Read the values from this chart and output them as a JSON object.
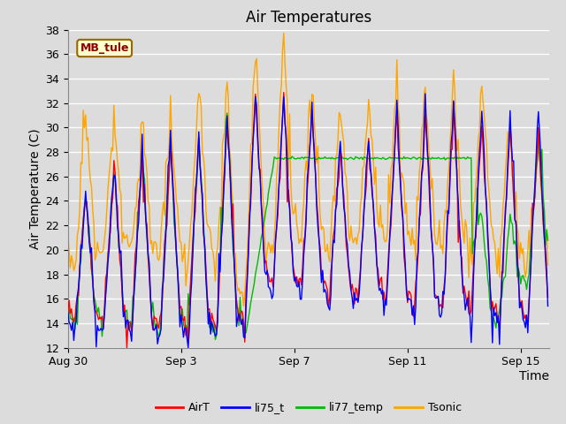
{
  "title": "Air Temperatures",
  "xlabel": "Time",
  "ylabel": "Air Temperature (C)",
  "ylim": [
    12,
    38
  ],
  "yticks": [
    12,
    14,
    16,
    18,
    20,
    22,
    24,
    26,
    28,
    30,
    32,
    34,
    36,
    38
  ],
  "station_label": "MB_tule",
  "station_label_color": "#8B0000",
  "station_box_facecolor": "#FFFFCC",
  "station_box_edgecolor": "#996600",
  "colors": {
    "AirT": "#FF0000",
    "li75_t": "#0000FF",
    "li77_temp": "#00BB00",
    "Tsonic": "#FFA500"
  },
  "background_color": "#DCDCDC",
  "grid_color": "#FFFFFF",
  "title_fontsize": 12,
  "axis_label_fontsize": 10,
  "tick_fontsize": 9,
  "xtick_positions": [
    0,
    4,
    8,
    12,
    16
  ],
  "xtick_labels": [
    "Aug 30",
    "Sep 3",
    "Sep 7",
    "Sep 11",
    "Sep 15"
  ],
  "xlim": [
    0,
    17
  ]
}
